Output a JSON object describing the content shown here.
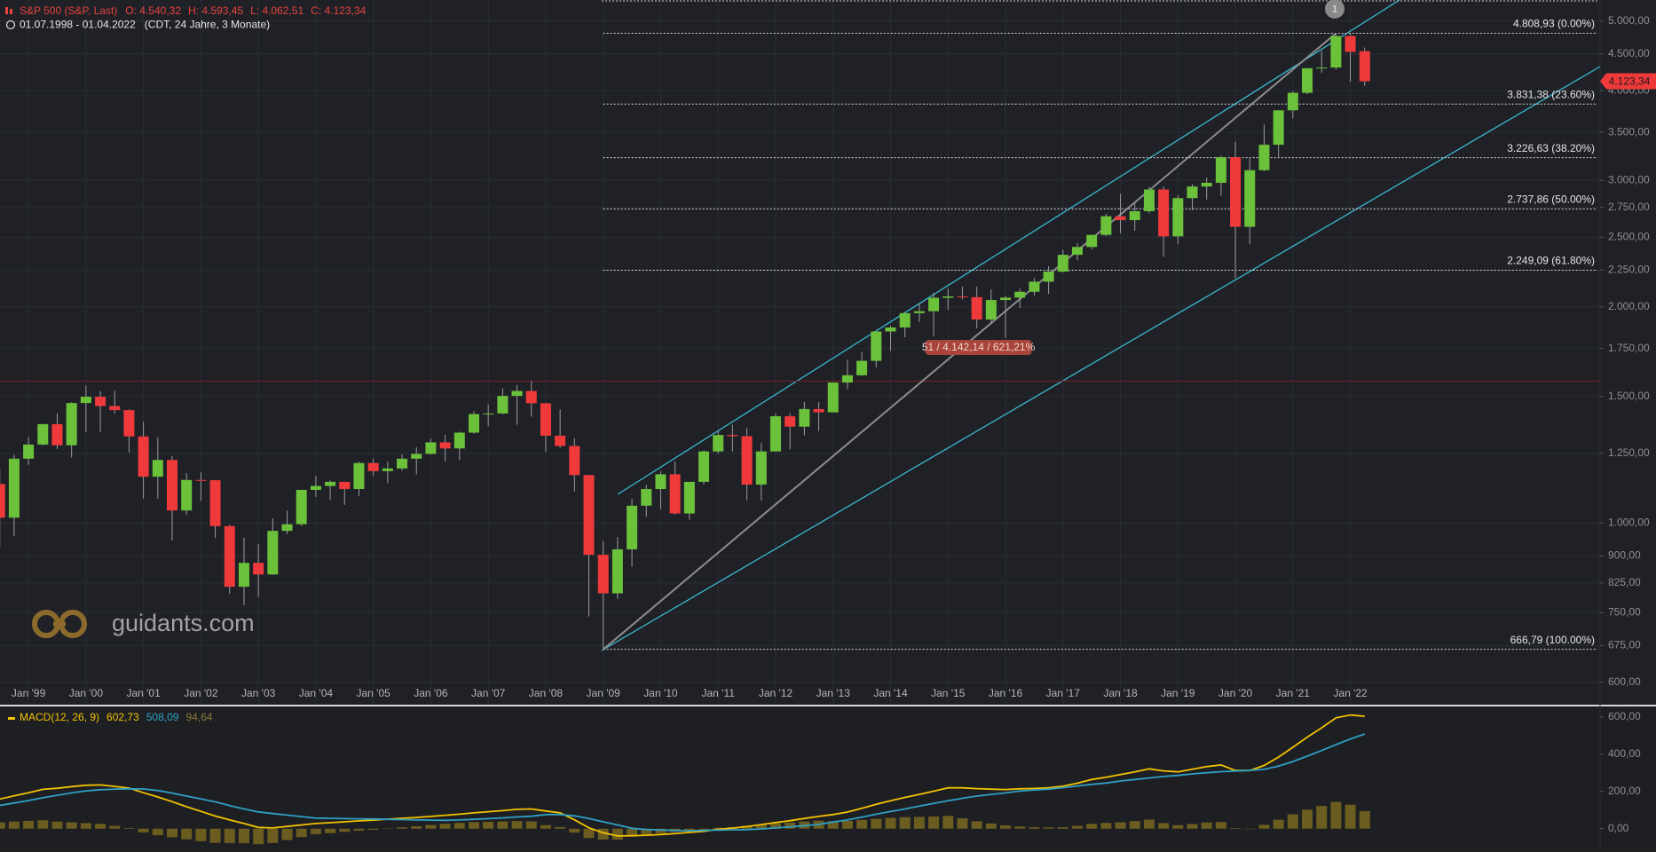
{
  "chart_data": [
    {
      "type": "candlestick",
      "title": "S&P 500 (S&P, Last)",
      "ohlc_labels": [
        "O: 4.540,32",
        "H: 4.593,45",
        "L: 4.062,51",
        "C: 4.123,34"
      ],
      "subtitle": "01.07.1998 - 01.04.2022",
      "period_note": "(CDT, 24 Jahre, 3 Monate)",
      "watermark": "guidants.com",
      "event_marker": "1",
      "measure_label": "51 / 4.142,14 / 621,21%",
      "last_price_label": "4.123,34",
      "log_scale": true,
      "grid": true,
      "up_color": "#6cc13a",
      "down_color": "#f0393a",
      "resistance_line": 1576,
      "categories": [
        null,
        null,
        "Jan '99",
        null,
        null,
        null,
        "Jan '00",
        null,
        null,
        null,
        "Jan '01",
        null,
        null,
        null,
        "Jan '02",
        null,
        null,
        null,
        "Jan '03",
        null,
        null,
        null,
        "Jan '04",
        null,
        null,
        null,
        "Jan '05",
        null,
        null,
        null,
        "Jan '06",
        null,
        null,
        null,
        "Jan '07",
        null,
        null,
        null,
        "Jan '08",
        null,
        null,
        null,
        "Jan '09",
        null,
        null,
        null,
        "Jan '10",
        null,
        null,
        null,
        "Jan '11",
        null,
        null,
        null,
        "Jan '12",
        null,
        null,
        null,
        "Jan '13",
        null,
        null,
        null,
        "Jan '14",
        null,
        null,
        null,
        "Jan '15",
        null,
        null,
        null,
        "Jan '16",
        null,
        null,
        null,
        "Jan '17",
        null,
        null,
        null,
        "Jan '18",
        null,
        null,
        null,
        "Jan '19",
        null,
        null,
        null,
        "Jan '20",
        null,
        null,
        null,
        "Jan '21",
        null,
        null,
        null,
        "Jan '22",
        null
      ],
      "open": [
        1133,
        1017,
        1229,
        1286,
        1373,
        1283,
        1469,
        1499,
        1455,
        1436,
        1320,
        1160,
        1224,
        1041,
        1148,
        1147,
        990,
        815,
        880,
        848,
        975,
        996,
        1112,
        1126,
        1141,
        1115,
        1212,
        1181,
        1191,
        1229,
        1248,
        1295,
        1270,
        1336,
        1418,
        1421,
        1503,
        1527,
        1468,
        1323,
        1280,
        1166,
        903,
        798,
        919,
        1057,
        1115,
        1169,
        1031,
        1141,
        1258,
        1326,
        1321,
        1131,
        1258,
        1408,
        1362,
        1441,
        1426,
        1569,
        1606,
        1682,
        1848,
        1872,
        1960,
        1972,
        2059,
        2068,
        2063,
        1920,
        2044,
        2060,
        2099,
        2168,
        2239,
        2363,
        2423,
        2519,
        2674,
        2641,
        2718,
        2914,
        2507,
        2834,
        2942,
        2977,
        3231,
        2585,
        3100,
        3363,
        3756,
        3973,
        4298,
        4308,
        4766,
        4540.32
      ],
      "high": [
        1190,
        1244,
        1317,
        1375,
        1421,
        1473,
        1553,
        1527,
        1530,
        1440,
        1384,
        1316,
        1239,
        1173,
        1176,
        1148,
        994,
        954,
        935,
        1015,
        1040,
        1112,
        1163,
        1146,
        1141,
        1217,
        1229,
        1217,
        1246,
        1275,
        1310,
        1326,
        1340,
        1431,
        1462,
        1540,
        1556,
        1576,
        1471,
        1440,
        1313,
        1167,
        944,
        956,
        1080,
        1130,
        1180,
        1219,
        1131,
        1263,
        1344,
        1371,
        1356,
        1292,
        1420,
        1422,
        1475,
        1474,
        1570,
        1687,
        1729,
        1849,
        1883,
        1968,
        2019,
        2093,
        2119,
        2134,
        2133,
        2116,
        2072,
        2120,
        2194,
        2278,
        2401,
        2454,
        2519,
        2695,
        2873,
        2791,
        2940,
        2940,
        2860,
        2964,
        3028,
        3247,
        3394,
        3233,
        3588,
        3760,
        3994,
        4302,
        4546,
        4808.93,
        4818.62,
        4593.45
      ],
      "low": [
        923,
        959,
        1205,
        1282,
        1268,
        1233,
        1339,
        1339,
        1420,
        1254,
        1081,
        1081,
        945,
        1026,
        1074,
        953,
        797,
        768,
        789,
        847,
        965,
        990,
        1087,
        1076,
        1060,
        1090,
        1163,
        1136,
        1183,
        1168,
        1245,
        1219,
        1224,
        1331,
        1364,
        1416,
        1370,
        1406,
        1257,
        1272,
        1106,
        741,
        666.79,
        784,
        869,
        1020,
        1044,
        1028,
        1010,
        1131,
        1249,
        1258,
        1075,
        1074,
        1258,
        1267,
        1325,
        1343,
        1426,
        1536,
        1604,
        1646,
        1737,
        1814,
        1904,
        1820,
        1981,
        2048,
        1867,
        1893,
        1810,
        1992,
        2074,
        2084,
        2233,
        2322,
        2405,
        2509,
        2533,
        2553,
        2698,
        2347,
        2444,
        2729,
        2822,
        2856,
        2192,
        2447,
        3090,
        3234,
        3662,
        3955,
        4233,
        4278,
        4114,
        4062.51
      ],
      "close": [
        1017,
        1229,
        1286,
        1373,
        1283,
        1469,
        1499,
        1455,
        1436,
        1320,
        1160,
        1224,
        1041,
        1148,
        1147,
        990,
        815,
        880,
        848,
        975,
        996,
        1112,
        1126,
        1141,
        1115,
        1212,
        1181,
        1191,
        1229,
        1248,
        1295,
        1270,
        1336,
        1418,
        1421,
        1503,
        1527,
        1468,
        1323,
        1280,
        1166,
        903,
        798,
        919,
        1057,
        1115,
        1169,
        1031,
        1141,
        1258,
        1326,
        1321,
        1131,
        1258,
        1408,
        1362,
        1441,
        1426,
        1569,
        1606,
        1682,
        1848,
        1872,
        1960,
        1972,
        2059,
        2068,
        2063,
        1920,
        2044,
        2060,
        2099,
        2168,
        2239,
        2363,
        2423,
        2519,
        2674,
        2641,
        2718,
        2914,
        2507,
        2834,
        2942,
        2977,
        3231,
        2585,
        3100,
        3363,
        3756,
        3973,
        4298,
        4308,
        4766,
        4530,
        4123.34
      ],
      "fib_levels": [
        {
          "value": 4808.93,
          "label": "4.808,93 (0.00%)"
        },
        {
          "value": 3831.38,
          "label": "3.831,38 (23.60%)"
        },
        {
          "value": 3226.63,
          "label": "3.226,63 (38.20%)"
        },
        {
          "value": 2737.86,
          "label": "2.737,86 (50.00%)"
        },
        {
          "value": 2249.09,
          "label": "2.249,09 (61.80%)"
        },
        {
          "value": 666.79,
          "label": "666,79 (100.00%)"
        }
      ],
      "ylim": [
        560,
        5350
      ],
      "yticks": [
        {
          "value": 600,
          "label": "600,00"
        },
        {
          "value": 675,
          "label": "675,00"
        },
        {
          "value": 750,
          "label": "750,00"
        },
        {
          "value": 825,
          "label": "825,00"
        },
        {
          "value": 900,
          "label": "900,00"
        },
        {
          "value": 1000,
          "label": "1.000,00"
        },
        {
          "value": 1250,
          "label": "1.250,00"
        },
        {
          "value": 1500,
          "label": "1.500,00"
        },
        {
          "value": 1750,
          "label": "1.750,00"
        },
        {
          "value": 2000,
          "label": "2.000,00"
        },
        {
          "value": 2250,
          "label": "2.250,00"
        },
        {
          "value": 2500,
          "label": "2.500,00"
        },
        {
          "value": 2750,
          "label": "2.750,00"
        },
        {
          "value": 3000,
          "label": "3.000,00"
        },
        {
          "value": 3500,
          "label": "3.500,00"
        },
        {
          "value": 4000,
          "label": "4.000,00"
        },
        {
          "value": 4500,
          "label": "4.500,00"
        },
        {
          "value": 5000,
          "label": "5.000,00"
        }
      ]
    },
    {
      "type": "line",
      "title": "MACD(12, 26, 9)",
      "series": [
        {
          "color": "#f2c200",
          "last_label": "602,73",
          "values": [
            159,
            176,
            193,
            211,
            217,
            226,
            233,
            235,
            227,
            218,
            193,
            170,
            145,
            118,
            93,
            68,
            47,
            28,
            7,
            4,
            12,
            20,
            28,
            32,
            37,
            42,
            46,
            51,
            56,
            60,
            66,
            72,
            78,
            85,
            91,
            97,
            104,
            106,
            95,
            85,
            48,
            5,
            -22,
            -39,
            -38,
            -35,
            -31,
            -26,
            -20,
            -14,
            -3,
            3,
            11,
            22,
            33,
            43,
            55,
            66,
            76,
            89,
            109,
            131,
            150,
            168,
            184,
            201,
            219,
            219,
            215,
            212,
            210,
            214,
            216,
            219,
            228,
            244,
            264,
            276,
            290,
            305,
            321,
            310,
            305,
            319,
            333,
            342,
            312,
            312,
            339,
            384,
            437,
            491,
            541,
            595,
            610,
            602.73
          ]
        },
        {
          "color": "#2f9fc4",
          "last_label": "508,09",
          "values": [
            125,
            138,
            151,
            166,
            179,
            192,
            203,
            209,
            212,
            214,
            213,
            205,
            191,
            175,
            160,
            144,
            124,
            106,
            90,
            81,
            73,
            65,
            57,
            56,
            54,
            53,
            52,
            50,
            49,
            47,
            46,
            45,
            47,
            50,
            54,
            58,
            63,
            67,
            76,
            76,
            69,
            55,
            37,
            20,
            2,
            -4,
            -7,
            -10,
            -11,
            -9,
            -8,
            -6,
            -5,
            -1,
            4,
            10,
            16,
            23,
            36,
            47,
            62,
            78,
            92,
            106,
            121,
            136,
            150,
            163,
            175,
            184,
            192,
            202,
            208,
            212,
            220,
            229,
            238,
            245,
            256,
            264,
            272,
            280,
            286,
            294,
            300,
            306,
            309,
            313,
            318,
            336,
            360,
            389,
            419,
            451,
            481,
            508.09
          ]
        },
        {
          "color": "#6b5c20",
          "kind": "bar",
          "last_label": "94,64",
          "values": [
            34,
            38,
            42,
            45,
            38,
            34,
            30,
            26,
            15,
            4,
            -20,
            -35,
            -46,
            -57,
            -67,
            -76,
            -77,
            -78,
            -83,
            -77,
            -61,
            -45,
            -29,
            -24,
            -17,
            -11,
            -6,
            1,
            7,
            13,
            20,
            27,
            31,
            35,
            37,
            39,
            41,
            39,
            19,
            9,
            -21,
            -50,
            -59,
            -59,
            -40,
            -31,
            -24,
            -16,
            -9,
            -5,
            5,
            9,
            16,
            23,
            29,
            33,
            39,
            43,
            40,
            42,
            47,
            53,
            58,
            62,
            63,
            65,
            69,
            56,
            40,
            28,
            18,
            12,
            8,
            7,
            8,
            15,
            26,
            31,
            34,
            41,
            49,
            30,
            19,
            25,
            33,
            36,
            3,
            -1,
            21,
            48,
            77,
            102,
            122,
            144,
            129,
            94.64
          ]
        }
      ],
      "ylim": [
        -125,
        651
      ],
      "yticks": [
        {
          "value": 0,
          "label": "0,00"
        },
        {
          "value": 200,
          "label": "200,00"
        },
        {
          "value": 400,
          "label": "400,00"
        },
        {
          "value": 600,
          "label": "600,00"
        }
      ]
    }
  ]
}
